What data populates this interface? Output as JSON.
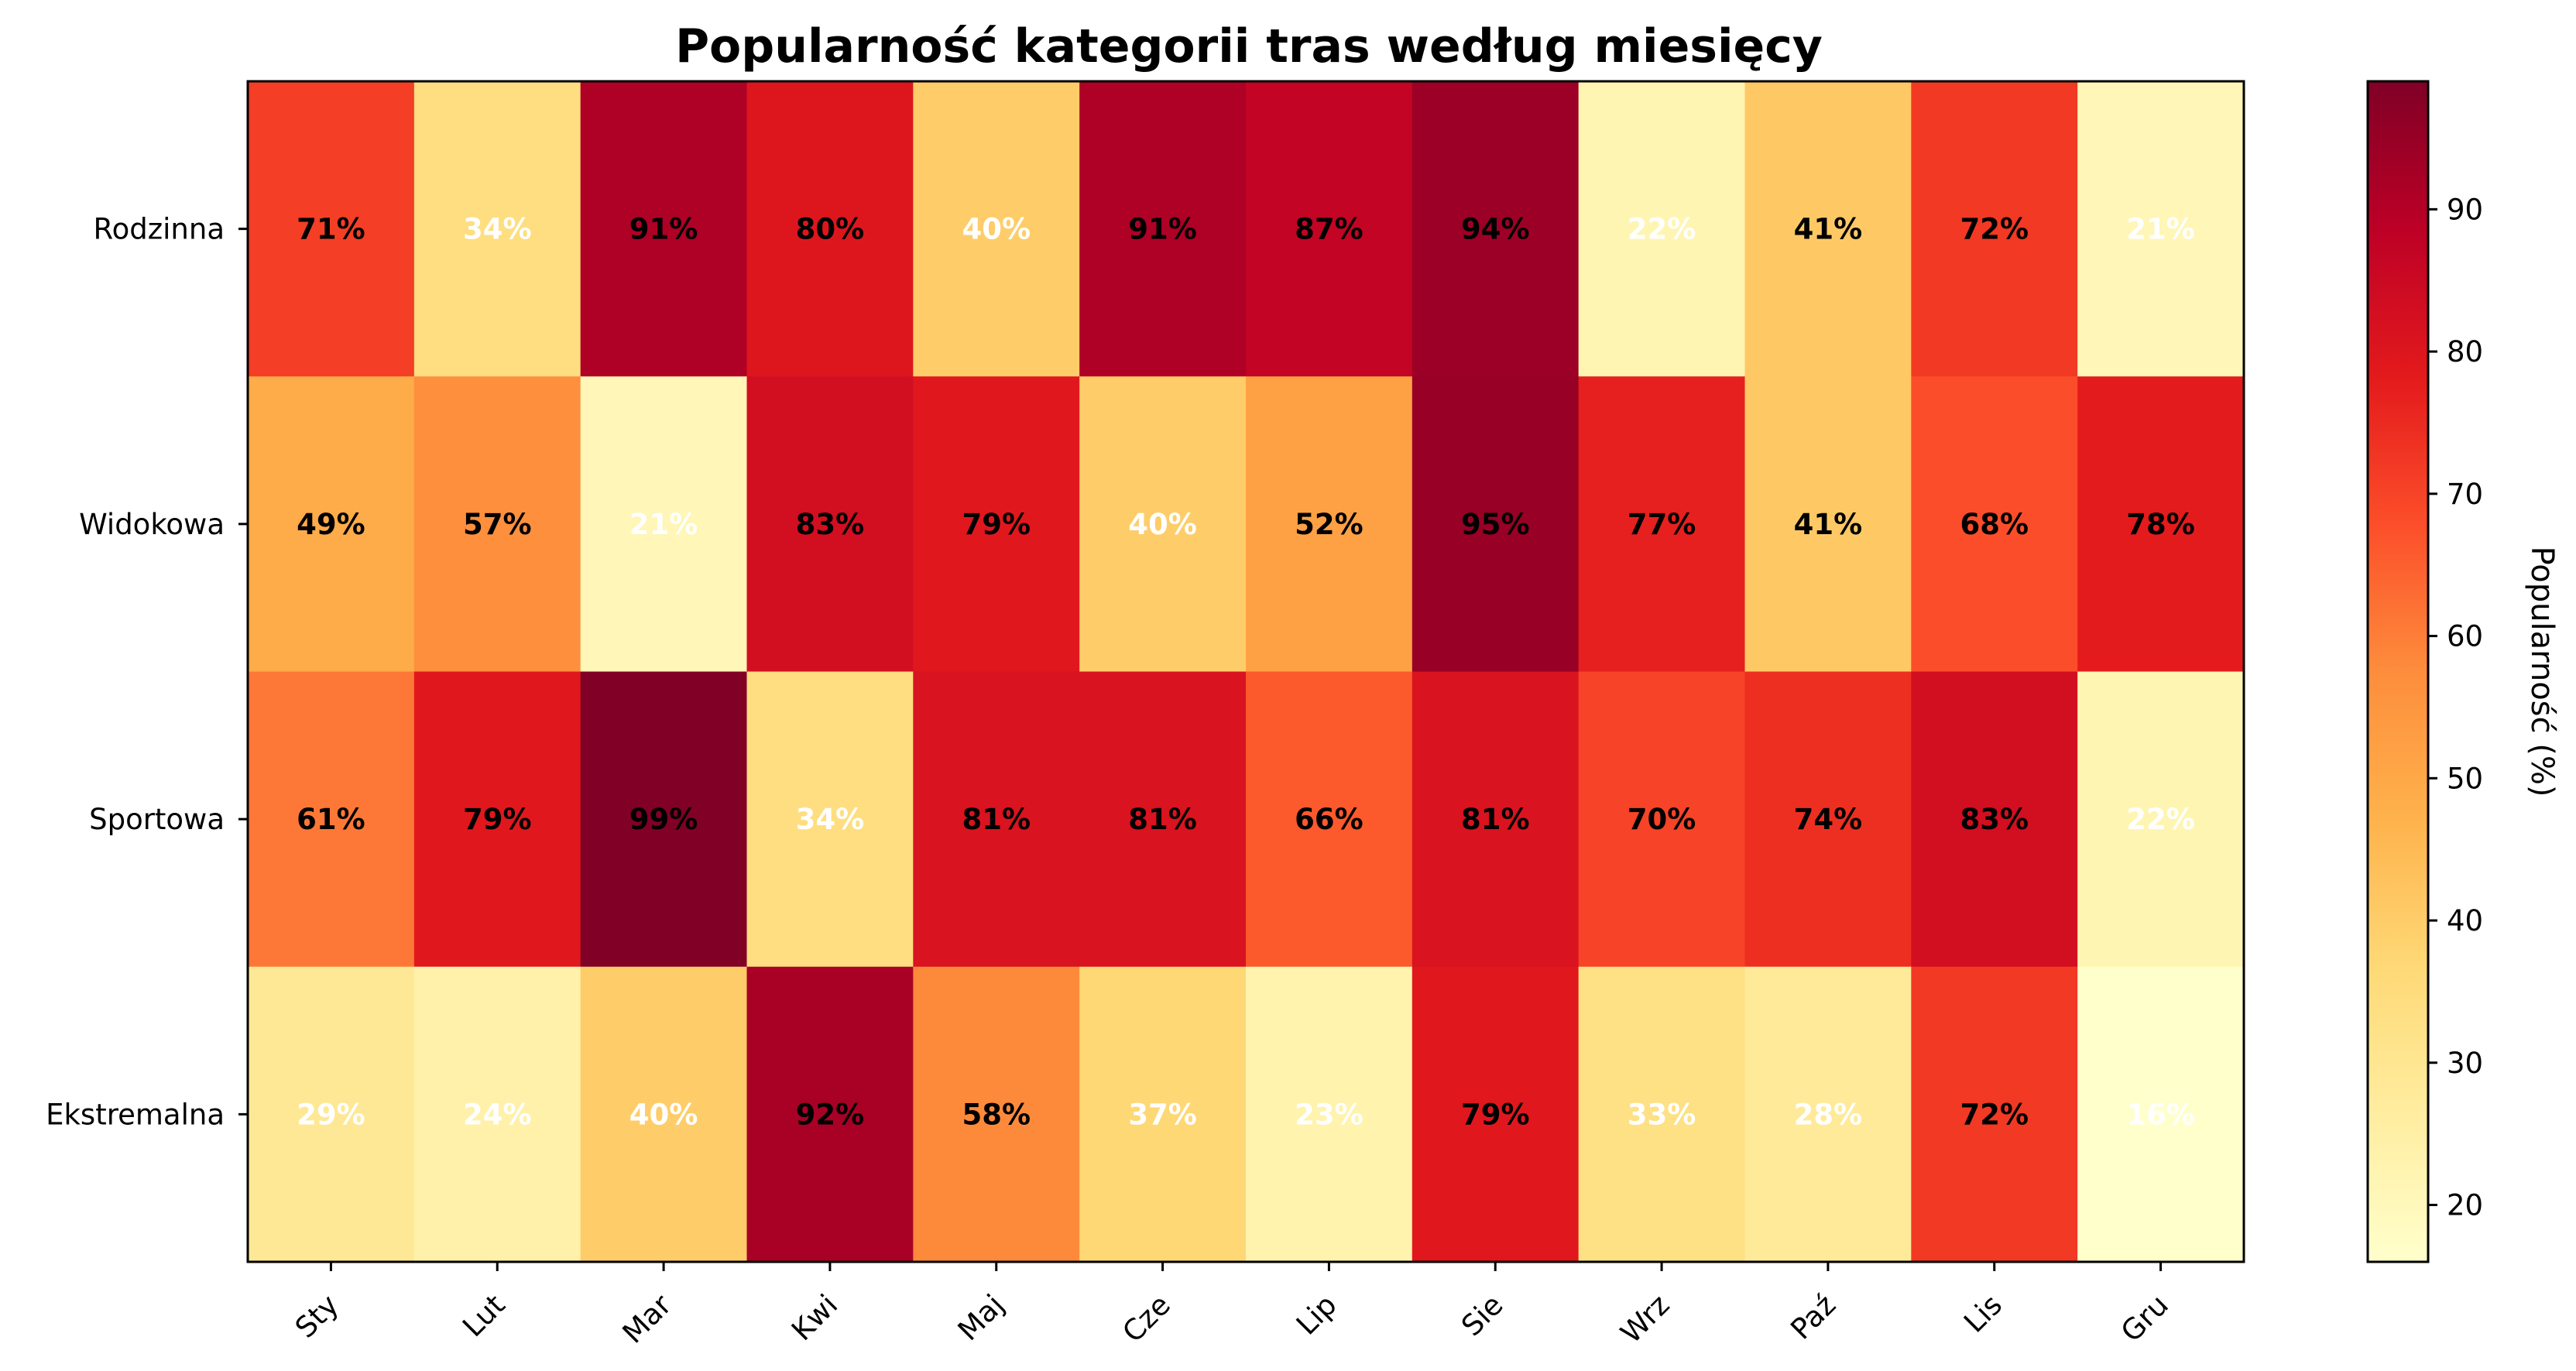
{
  "chart_data": {
    "type": "heatmap",
    "title": "Popularność kategorii tras według miesięcy",
    "x_categories": [
      "Sty",
      "Lut",
      "Mar",
      "Kwi",
      "Maj",
      "Cze",
      "Lip",
      "Sie",
      "Wrz",
      "Paź",
      "Lis",
      "Gru"
    ],
    "y_categories": [
      "Rodzinna",
      "Widokowa",
      "Sportowa",
      "Ekstremalna"
    ],
    "values": [
      [
        71,
        34,
        91,
        80,
        40,
        91,
        87,
        94,
        22,
        41,
        72,
        21
      ],
      [
        49,
        57,
        21,
        83,
        79,
        40,
        52,
        95,
        77,
        41,
        68,
        78
      ],
      [
        61,
        79,
        99,
        34,
        81,
        81,
        66,
        81,
        70,
        74,
        83,
        22
      ],
      [
        29,
        24,
        40,
        92,
        58,
        37,
        23,
        79,
        33,
        28,
        72,
        16
      ]
    ],
    "value_suffix": "%",
    "colorbar": {
      "label": "Popularność (%)",
      "range": [
        16,
        99
      ],
      "ticks": [
        20,
        30,
        40,
        50,
        60,
        70,
        80,
        90
      ],
      "colormap": "YlOrRd"
    },
    "label_colors": {
      "low": "#ffffff",
      "high": "#000000"
    }
  }
}
